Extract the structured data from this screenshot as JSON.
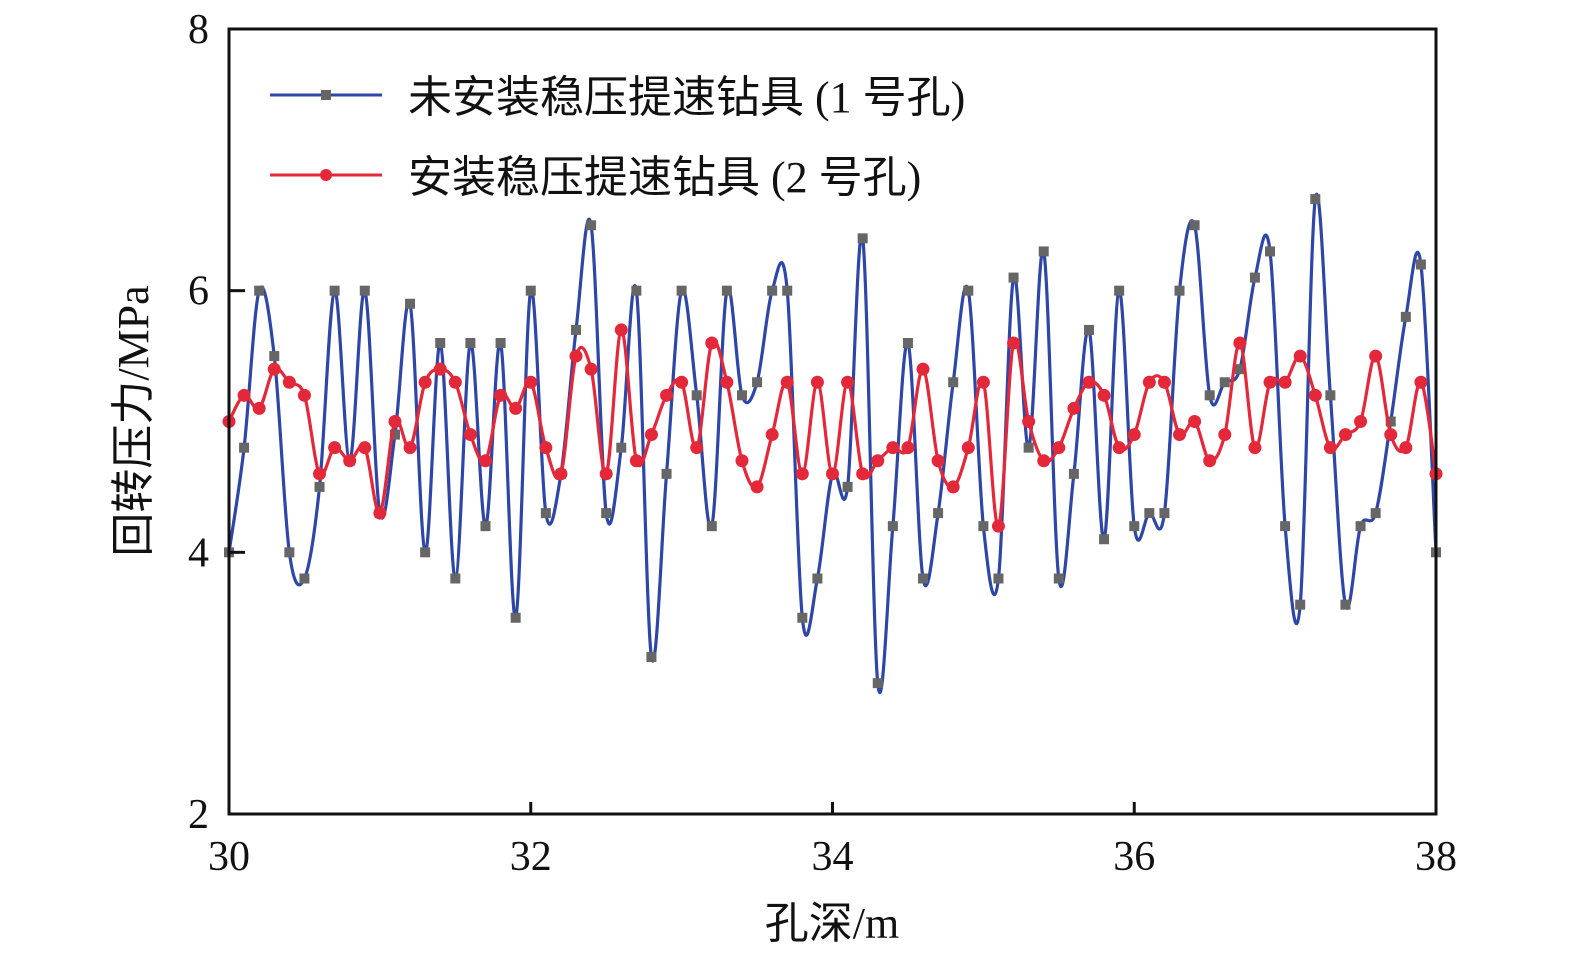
{
  "chart_data": {
    "type": "line",
    "title": "",
    "xlabel": "孔深/m",
    "ylabel": "回转压力/MPa",
    "xlim": [
      30,
      38
    ],
    "ylim": [
      2,
      8
    ],
    "xticks": [
      "30",
      "32",
      "34",
      "36",
      "38"
    ],
    "yticks": [
      "2",
      "4",
      "6",
      "8"
    ],
    "grid": false,
    "legend_position": "top-left",
    "x": [
      30.0,
      30.1,
      30.2,
      30.3,
      30.4,
      30.5,
      30.6,
      30.7,
      30.8,
      30.9,
      31.0,
      31.1,
      31.2,
      31.3,
      31.4,
      31.5,
      31.6,
      31.7,
      31.8,
      31.9,
      32.0,
      32.1,
      32.2,
      32.3,
      32.4,
      32.5,
      32.6,
      32.7,
      32.8,
      32.9,
      33.0,
      33.1,
      33.2,
      33.3,
      33.4,
      33.5,
      33.6,
      33.7,
      33.8,
      33.9,
      34.0,
      34.1,
      34.2,
      34.3,
      34.4,
      34.5,
      34.6,
      34.7,
      34.8,
      34.9,
      35.0,
      35.1,
      35.2,
      35.3,
      35.4,
      35.5,
      35.6,
      35.7,
      35.8,
      35.9,
      36.0,
      36.1,
      36.2,
      36.3,
      36.4,
      36.5,
      36.6,
      36.7,
      36.8,
      36.9,
      37.0,
      37.1,
      37.2,
      37.3,
      37.4,
      37.5,
      37.6,
      37.7,
      37.8,
      37.9,
      38.0
    ],
    "series": [
      {
        "name": "未安装稳压提速钻具 (1 号孔)",
        "color": "#2e46a6",
        "marker_color": "#666666",
        "marker": "square",
        "values": [
          4.0,
          4.8,
          6.0,
          5.5,
          4.0,
          3.8,
          4.5,
          6.0,
          4.7,
          6.0,
          4.3,
          4.9,
          5.9,
          4.0,
          5.6,
          3.8,
          5.6,
          4.2,
          5.6,
          3.5,
          6.0,
          4.3,
          4.6,
          5.7,
          6.5,
          4.3,
          4.8,
          6.0,
          3.2,
          4.6,
          6.0,
          5.2,
          4.2,
          6.0,
          5.2,
          5.3,
          6.0,
          6.0,
          3.5,
          3.8,
          4.6,
          4.5,
          6.4,
          3.0,
          4.2,
          5.6,
          3.8,
          4.3,
          5.3,
          6.0,
          4.2,
          3.8,
          6.1,
          4.8,
          6.3,
          3.8,
          4.6,
          5.7,
          4.1,
          6.0,
          4.2,
          4.3,
          4.3,
          6.0,
          6.5,
          5.2,
          5.3,
          5.4,
          6.1,
          6.3,
          4.2,
          3.6,
          6.7,
          5.2,
          3.6,
          4.2,
          4.3,
          5.0,
          5.8,
          6.2,
          4.0
        ]
      },
      {
        "name": "安装稳压提速钻具 (2 号孔)",
        "color": "#e3283a",
        "marker_color": "#e3283a",
        "marker": "circle",
        "values": [
          5.0,
          5.2,
          5.1,
          5.4,
          5.3,
          5.2,
          4.6,
          4.8,
          4.7,
          4.8,
          4.3,
          5.0,
          4.8,
          5.3,
          5.4,
          5.3,
          4.9,
          4.7,
          5.2,
          5.1,
          5.3,
          4.8,
          4.6,
          5.5,
          5.4,
          4.6,
          5.7,
          4.7,
          4.9,
          5.2,
          5.3,
          4.8,
          5.6,
          5.3,
          4.7,
          4.5,
          4.9,
          5.3,
          4.6,
          5.3,
          4.6,
          5.3,
          4.6,
          4.7,
          4.8,
          4.8,
          5.4,
          4.7,
          4.5,
          4.8,
          5.3,
          4.2,
          5.6,
          5.0,
          4.7,
          4.8,
          5.1,
          5.3,
          5.2,
          4.8,
          4.9,
          5.3,
          5.3,
          4.9,
          5.0,
          4.7,
          4.9,
          5.6,
          4.8,
          5.3,
          5.3,
          5.5,
          5.2,
          4.8,
          4.9,
          5.0,
          5.5,
          4.9,
          4.8,
          5.3,
          4.6
        ]
      }
    ]
  }
}
